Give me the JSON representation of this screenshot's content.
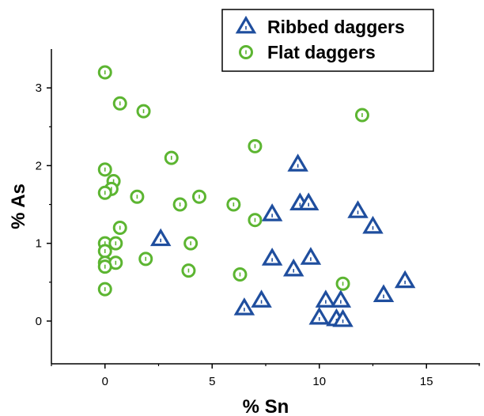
{
  "chart_data": {
    "type": "scatter",
    "title": "",
    "xlabel": "% Sn",
    "ylabel": "% As",
    "xlim": [
      -2.5,
      17.5
    ],
    "ylim": [
      -0.55,
      3.5
    ],
    "xticks": [
      0,
      5,
      10,
      15
    ],
    "xtick_labels": [
      "0",
      "5",
      "10",
      "15"
    ],
    "yticks": [
      0,
      1,
      2,
      3
    ],
    "ytick_labels": [
      "0",
      "1",
      "2",
      "3"
    ],
    "grid": false,
    "legend": "top-right",
    "series": [
      {
        "name": "Ribbed daggers",
        "marker": "triangle",
        "color": "#1f4e9e",
        "points": [
          [
            2.6,
            1.05
          ],
          [
            6.5,
            0.16
          ],
          [
            7.3,
            0.26
          ],
          [
            7.8,
            1.37
          ],
          [
            7.8,
            0.8
          ],
          [
            8.8,
            0.66
          ],
          [
            9.0,
            2.01
          ],
          [
            9.1,
            1.51
          ],
          [
            9.5,
            1.51
          ],
          [
            9.6,
            0.81
          ],
          [
            10.0,
            0.04
          ],
          [
            10.3,
            0.26
          ],
          [
            10.8,
            0.02
          ],
          [
            11.0,
            0.26
          ],
          [
            11.1,
            0.01
          ],
          [
            11.8,
            1.41
          ],
          [
            12.5,
            1.21
          ],
          [
            13.0,
            0.33
          ],
          [
            14.0,
            0.51
          ]
        ]
      },
      {
        "name": "Flat daggers",
        "marker": "circle",
        "color": "#5cb531",
        "points": [
          [
            0.0,
            3.2
          ],
          [
            0.7,
            2.8
          ],
          [
            1.8,
            2.7
          ],
          [
            0.0,
            1.95
          ],
          [
            0.4,
            1.8
          ],
          [
            0.3,
            1.7
          ],
          [
            0.0,
            1.65
          ],
          [
            1.5,
            1.6
          ],
          [
            3.1,
            2.1
          ],
          [
            0.7,
            1.2
          ],
          [
            0.0,
            1.0
          ],
          [
            0.5,
            1.0
          ],
          [
            0.0,
            0.9
          ],
          [
            1.9,
            0.8
          ],
          [
            0.0,
            0.75
          ],
          [
            0.5,
            0.75
          ],
          [
            0.0,
            0.7
          ],
          [
            0.0,
            0.41
          ],
          [
            3.5,
            1.5
          ],
          [
            4.4,
            1.6
          ],
          [
            4.0,
            1.0
          ],
          [
            3.9,
            0.65
          ],
          [
            6.0,
            1.5
          ],
          [
            7.0,
            2.25
          ],
          [
            7.0,
            1.3
          ],
          [
            6.3,
            0.6
          ],
          [
            11.1,
            0.48
          ],
          [
            12.0,
            2.65
          ]
        ]
      }
    ]
  }
}
